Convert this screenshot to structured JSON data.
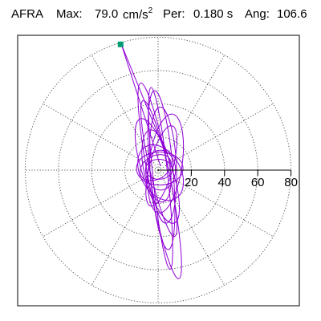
{
  "header": {
    "station": "AFRA",
    "max_label": "Max:",
    "max_value": "79.0",
    "max_unit": "cm/s",
    "max_unit_exp": "2",
    "per_label": "Per:",
    "per_value": "0.180 s",
    "ang_label": "Ang:",
    "ang_value": "106.6"
  },
  "chart_data": {
    "type": "polar",
    "title": "AFRA   Max:  79.0 cm/s2  Per:  0.180 s   Ang: 106.6",
    "radial_ticks": [
      20,
      40,
      60,
      80
    ],
    "radial_max": 80,
    "angular_spokes_deg": [
      0,
      30,
      60,
      90,
      120,
      150,
      180,
      210,
      240,
      270,
      300,
      330
    ],
    "grid": "dotted",
    "peak": {
      "value": 79.0,
      "unit": "cm/s2",
      "angle_deg": 106.6,
      "marker_color": "#009b72"
    },
    "trace_color": "#8f00d6",
    "trace_loops": [
      {
        "a": 42,
        "b": 5.5,
        "angle": 103,
        "cx": 1,
        "cy": 2
      },
      {
        "a": 60,
        "b": 6.5,
        "angle": 101,
        "cx": 2,
        "cy": -13
      },
      {
        "a": 55,
        "b": 4.5,
        "angle": 96,
        "cx": 3,
        "cy": -10
      },
      {
        "a": 35,
        "b": 8,
        "angle": 93,
        "cx": 6,
        "cy": 6
      },
      {
        "a": 30,
        "b": 10,
        "angle": 82,
        "cx": 9,
        "cy": 8
      },
      {
        "a": 22,
        "b": 8,
        "angle": 100,
        "cx": -2,
        "cy": 5
      },
      {
        "a": 18,
        "b": 12,
        "angle": 120,
        "cx": 3,
        "cy": -3
      },
      {
        "a": 25,
        "b": 7,
        "angle": 75,
        "cx": 4,
        "cy": 5
      },
      {
        "a": 14,
        "b": 10,
        "angle": 0,
        "cx": 2,
        "cy": 2
      },
      {
        "a": 12,
        "b": 9,
        "angle": 90,
        "cx": 3,
        "cy": 0
      },
      {
        "a": 10,
        "b": 7,
        "angle": 30,
        "cx": -3,
        "cy": 3
      },
      {
        "a": 48,
        "b": 7,
        "angle": 95,
        "cx": 4,
        "cy": 0
      },
      {
        "a": 33,
        "b": 9,
        "angle": 108,
        "cx": -1,
        "cy": -1
      },
      {
        "a": 8,
        "b": 6,
        "angle": 0,
        "cx": 1,
        "cy": 1
      }
    ]
  }
}
